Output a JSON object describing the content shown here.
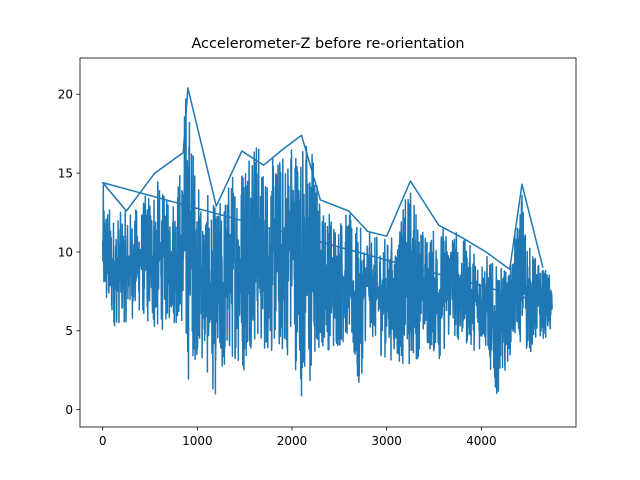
{
  "chart_data": {
    "type": "line",
    "title": "Accelerometer-Z before re-orientation",
    "xlabel": "",
    "ylabel": "",
    "xlim": [
      -240,
      5000
    ],
    "ylim": [
      -1.1,
      22.3
    ],
    "xticks": [
      0,
      1000,
      2000,
      3000,
      4000
    ],
    "yticks": [
      0,
      5,
      10,
      15,
      20
    ],
    "grid": false,
    "legend": "none",
    "series_color": "#1f77b4",
    "n_samples": 4750,
    "envelope": {
      "x": [
        0,
        100,
        250,
        400,
        550,
        700,
        850,
        870,
        900,
        1000,
        1200,
        1400,
        1470,
        1570,
        1700,
        1800,
        1900,
        2000,
        2100,
        2200,
        2300,
        2450,
        2600,
        2700,
        2800,
        2900,
        3000,
        3100,
        3250,
        3400,
        3550,
        3700,
        3800,
        3950,
        4050,
        4150,
        4300,
        4400,
        4430,
        4500,
        4650,
        4750
      ],
      "lower": [
        6.0,
        5.2,
        5.5,
        6.0,
        4.5,
        5.5,
        5.0,
        0.3,
        1.6,
        3.5,
        0.6,
        3.2,
        1.7,
        4.0,
        3.5,
        3.4,
        3.0,
        3.5,
        0.8,
        0.3,
        4.0,
        3.5,
        4.5,
        0.3,
        5.5,
        3.5,
        3.2,
        3.0,
        2.4,
        4.0,
        3.0,
        4.6,
        4.0,
        3.7,
        3.7,
        0.6,
        3.4,
        4.4,
        3.6,
        3.4,
        4.5,
        4.6
      ],
      "upper": [
        14.4,
        12.5,
        12.6,
        13.0,
        15.0,
        13.1,
        16.3,
        21.2,
        20.4,
        14.5,
        12.9,
        15.8,
        16.4,
        19.3,
        15.5,
        16.1,
        16.5,
        17.9,
        17.4,
        17.8,
        13.3,
        12.6,
        12.6,
        11.6,
        11.3,
        11.0,
        11.0,
        11.3,
        14.5,
        11.2,
        11.7,
        11.9,
        10.9,
        10.2,
        10.0,
        9.1,
        8.9,
        13.0,
        14.3,
        10.5,
        9.0,
        8.6
      ]
    }
  }
}
